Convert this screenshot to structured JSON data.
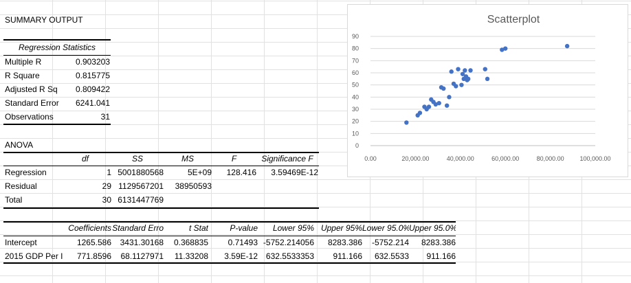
{
  "summary_title": "SUMMARY OUTPUT",
  "regression_stats": {
    "header": "Regression Statistics",
    "rows": [
      {
        "label": "Multiple R",
        "value": "0.903203"
      },
      {
        "label": "R Square",
        "value": "0.815775"
      },
      {
        "label": "Adjusted R Sq",
        "value": "0.809422"
      },
      {
        "label": "Standard Error",
        "value": "6241.041"
      },
      {
        "label": "Observations",
        "value": "31"
      }
    ]
  },
  "anova": {
    "title": "ANOVA",
    "headers": [
      "",
      "df",
      "SS",
      "MS",
      "F",
      "Significance F"
    ],
    "rows": [
      {
        "label": "Regression",
        "df": "1",
        "ss": "5001880568",
        "ms": "5E+09",
        "f": "128.416",
        "sig": "3.59469E-12"
      },
      {
        "label": "Residual",
        "df": "29",
        "ss": "1129567201",
        "ms": "38950593",
        "f": "",
        "sig": ""
      },
      {
        "label": "Total",
        "df": "30",
        "ss": "6131447769",
        "ms": "",
        "f": "",
        "sig": ""
      }
    ]
  },
  "coefficients": {
    "headers": [
      "",
      "Coefficients",
      "Standard Erro",
      "t Stat",
      "P-value",
      "Lower 95%",
      "Upper 95%",
      "Lower 95.0%",
      "Upper 95.0%"
    ],
    "rows": [
      {
        "label": "Intercept",
        "values": [
          "1265.586",
          "3431.30168",
          "0.368835",
          "0.71493",
          "-5752.214056",
          "8283.386",
          "-5752.214",
          "8283.386"
        ]
      },
      {
        "label": "2015 GDP Per I",
        "values": [
          "771.8596",
          "68.1127971",
          "11.33208",
          "3.59E-12",
          "632.5533353",
          "911.166",
          "632.5533",
          "911.166"
        ]
      }
    ]
  },
  "chart_data": {
    "type": "scatter",
    "title": "Scatterplot",
    "xlim": [
      0,
      100000
    ],
    "ylim": [
      0,
      90
    ],
    "x_ticks": [
      "0.00",
      "20,000.00",
      "40,000.00",
      "60,000.00",
      "80,000.00",
      "100,000.00"
    ],
    "y_ticks": [
      "0",
      "10",
      "20",
      "30",
      "40",
      "50",
      "60",
      "70",
      "80",
      "90"
    ],
    "marker_color": "#4472c4",
    "grid": true,
    "points": [
      {
        "x": 16000,
        "y": 19
      },
      {
        "x": 21000,
        "y": 25
      },
      {
        "x": 22000,
        "y": 27
      },
      {
        "x": 24000,
        "y": 32
      },
      {
        "x": 25000,
        "y": 30
      },
      {
        "x": 26000,
        "y": 32
      },
      {
        "x": 27000,
        "y": 38
      },
      {
        "x": 28000,
        "y": 36
      },
      {
        "x": 29000,
        "y": 34
      },
      {
        "x": 30500,
        "y": 35
      },
      {
        "x": 31500,
        "y": 48
      },
      {
        "x": 32500,
        "y": 47
      },
      {
        "x": 34000,
        "y": 33
      },
      {
        "x": 35000,
        "y": 40
      },
      {
        "x": 36000,
        "y": 61
      },
      {
        "x": 37000,
        "y": 51
      },
      {
        "x": 38000,
        "y": 49
      },
      {
        "x": 39000,
        "y": 63
      },
      {
        "x": 40500,
        "y": 50
      },
      {
        "x": 41000,
        "y": 59
      },
      {
        "x": 41500,
        "y": 55
      },
      {
        "x": 42000,
        "y": 62
      },
      {
        "x": 42500,
        "y": 57
      },
      {
        "x": 43000,
        "y": 54
      },
      {
        "x": 43500,
        "y": 55
      },
      {
        "x": 44500,
        "y": 62
      },
      {
        "x": 51000,
        "y": 63
      },
      {
        "x": 52000,
        "y": 55
      },
      {
        "x": 58500,
        "y": 79
      },
      {
        "x": 60000,
        "y": 80
      },
      {
        "x": 87500,
        "y": 82
      }
    ]
  }
}
